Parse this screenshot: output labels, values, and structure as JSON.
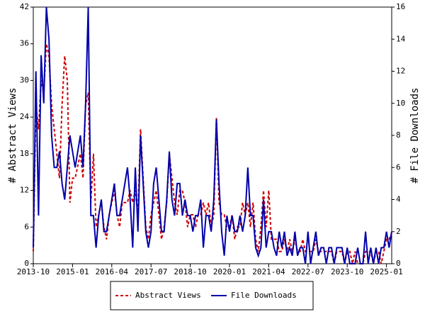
{
  "chart_data": {
    "type": "line",
    "x": [
      "2013-10",
      "2013-11",
      "2013-12",
      "2014-01",
      "2014-02",
      "2014-03",
      "2014-04",
      "2014-05",
      "2014-06",
      "2014-07",
      "2014-08",
      "2014-09",
      "2014-10",
      "2014-11",
      "2014-12",
      "2015-01",
      "2015-02",
      "2015-03",
      "2015-04",
      "2015-05",
      "2015-06",
      "2015-07",
      "2015-08",
      "2015-09",
      "2015-10",
      "2015-11",
      "2015-12",
      "2016-01",
      "2016-02",
      "2016-03",
      "2016-04",
      "2016-05",
      "2016-06",
      "2016-07",
      "2016-08",
      "2016-09",
      "2016-10",
      "2016-11",
      "2016-12",
      "2017-01",
      "2017-02",
      "2017-03",
      "2017-04",
      "2017-05",
      "2017-06",
      "2017-07",
      "2017-08",
      "2017-09",
      "2017-10",
      "2017-11",
      "2017-12",
      "2018-01",
      "2018-02",
      "2018-03",
      "2018-04",
      "2018-05",
      "2018-06",
      "2018-07",
      "2018-08",
      "2018-09",
      "2018-10",
      "2018-11",
      "2018-12",
      "2019-01",
      "2019-02",
      "2019-03",
      "2019-04",
      "2019-05",
      "2019-06",
      "2019-07",
      "2019-08",
      "2019-09",
      "2019-10",
      "2019-11",
      "2019-12",
      "2020-01",
      "2020-02",
      "2020-03",
      "2020-04",
      "2020-05",
      "2020-06",
      "2020-07",
      "2020-08",
      "2020-09",
      "2020-10",
      "2020-11",
      "2020-12",
      "2021-01",
      "2021-02",
      "2021-03",
      "2021-04",
      "2021-05",
      "2021-06",
      "2021-07",
      "2021-08",
      "2021-09",
      "2021-10",
      "2021-11",
      "2021-12",
      "2022-01",
      "2022-02",
      "2022-03",
      "2022-04",
      "2022-05",
      "2022-06",
      "2022-07",
      "2022-08",
      "2022-09",
      "2022-10",
      "2022-11",
      "2022-12",
      "2023-01",
      "2023-02",
      "2023-03",
      "2023-04",
      "2023-05",
      "2023-06",
      "2023-07",
      "2023-08",
      "2023-09",
      "2023-10",
      "2023-11",
      "2023-12",
      "2024-01",
      "2024-02",
      "2024-03",
      "2024-04",
      "2024-05",
      "2024-06",
      "2024-07",
      "2024-08",
      "2024-09",
      "2024-10",
      "2024-11",
      "2024-12",
      "2025-01",
      "2025-02",
      "2025-03"
    ],
    "xticks": [
      "2013-10",
      "2015-01",
      "2016-04",
      "2017-07",
      "2018-10",
      "2020-01",
      "2021-04",
      "2022-07",
      "2023-10",
      "2025-01"
    ],
    "ylabel": "# Abstract Views",
    "y2label": "# File Downloads",
    "ylim": [
      0,
      42
    ],
    "yticks": [
      0,
      6,
      12,
      18,
      24,
      30,
      36,
      42
    ],
    "y2lim": [
      0,
      16
    ],
    "y2ticks": [
      0,
      2,
      4,
      6,
      8,
      10,
      12,
      14,
      16
    ],
    "series": [
      {
        "name": "Abstract Views",
        "color": "#cc0000",
        "dash": "4,3",
        "values": [
          2,
          26,
          22,
          30,
          28,
          36,
          34,
          26,
          22,
          18,
          14,
          26,
          34,
          30,
          10,
          14,
          14,
          16,
          18,
          14,
          26,
          28,
          10,
          18,
          6,
          8,
          10,
          6,
          4,
          8,
          10,
          12,
          8,
          6,
          10,
          10,
          10,
          12,
          10,
          12,
          8,
          22,
          14,
          6,
          4,
          8,
          10,
          12,
          8,
          4,
          6,
          10,
          18,
          14,
          10,
          8,
          12,
          12,
          10,
          6,
          8,
          8,
          6,
          8,
          8,
          10,
          8,
          10,
          6,
          8,
          24,
          10,
          8,
          8,
          6,
          6,
          8,
          4,
          6,
          6,
          10,
          8,
          10,
          6,
          10,
          4,
          2,
          6,
          12,
          6,
          12,
          4,
          4,
          4,
          2,
          2,
          4,
          2,
          4,
          2,
          4,
          2,
          2,
          4,
          2,
          2,
          2,
          2,
          4,
          2,
          2,
          2,
          2,
          2,
          2,
          0,
          2,
          2,
          2,
          0,
          2,
          2,
          0,
          2,
          0,
          0,
          0,
          2,
          2,
          2,
          0,
          2,
          2,
          0,
          2,
          4,
          4,
          5
        ]
      },
      {
        "name": "File Downloads",
        "color": "#0000aa",
        "axis": "y2",
        "values": [
          1,
          12,
          3,
          13,
          10,
          16,
          14,
          8,
          6,
          6,
          7,
          5,
          4,
          6,
          8,
          7,
          6,
          7,
          8,
          6,
          10,
          16,
          3,
          3,
          1,
          3,
          4,
          2,
          2,
          3,
          4,
          5,
          3,
          3,
          4,
          5,
          6,
          4,
          1,
          6,
          2,
          8,
          5,
          2,
          1,
          2,
          5,
          6,
          4,
          2,
          2,
          4,
          7,
          4,
          3,
          5,
          5,
          3,
          4,
          3,
          3,
          2,
          3,
          3,
          4,
          1,
          3,
          3,
          2,
          4,
          9,
          5,
          2,
          0.5,
          3,
          2,
          3,
          2,
          2,
          3,
          2,
          3,
          6,
          3,
          3,
          1,
          0.5,
          1,
          4,
          1,
          2,
          2,
          1,
          0.5,
          2,
          1,
          2,
          0.5,
          1,
          0.5,
          2,
          0.5,
          1,
          1,
          0,
          2,
          0,
          1,
          2,
          0.5,
          1,
          1,
          0,
          1,
          1,
          0,
          1,
          1,
          1,
          0,
          1,
          0,
          0,
          0,
          1,
          0,
          0,
          2,
          0,
          1,
          0,
          1,
          0,
          1,
          1,
          2,
          1,
          2
        ]
      }
    ]
  }
}
